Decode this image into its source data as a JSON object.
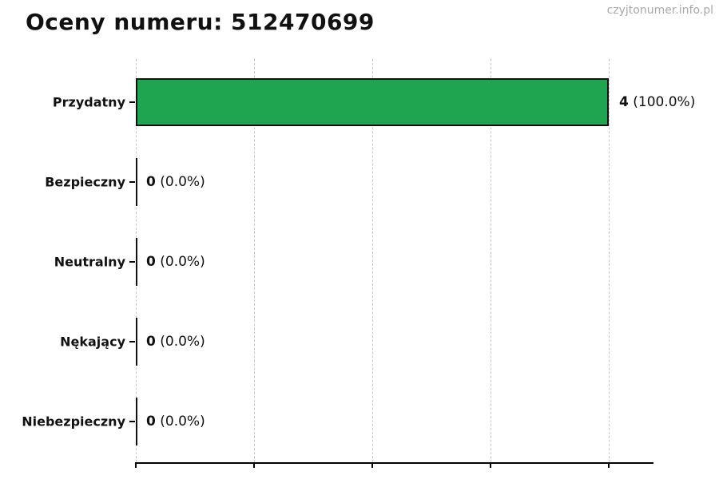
{
  "header": {
    "title": "Oceny numeru: 512470699",
    "watermark": "czyjtonumer.info.pl"
  },
  "chart_data": {
    "type": "bar",
    "orientation": "horizontal",
    "title": "Oceny numeru: 512470699",
    "categories": [
      "Przydatny",
      "Bezpieczny",
      "Neutralny",
      "Nękający",
      "Niebezpieczny"
    ],
    "values": [
      4,
      0,
      0,
      0,
      0
    ],
    "percent_labels": [
      "(100.0%)",
      "(0.0%)",
      "(0.0%)",
      "(0.0%)",
      "(0.0%)"
    ],
    "value_label_texts": [
      "4 (100.0%)",
      "0 (0.0%)",
      "0 (0.0%)",
      "0 (0.0%)",
      "0 (0.0%)"
    ],
    "xlim": [
      0,
      4.38
    ],
    "xticks": [
      0,
      1,
      2,
      3,
      4
    ],
    "xtick_labels_visible": false,
    "ylabel": "",
    "xlabel": "",
    "grid": "vertical-dashed",
    "legend": "none",
    "colors": {
      "bar_fill": "#1fa44f",
      "bar_edge": "#111111",
      "grid_line": "#c9c9c9",
      "axis": "#000000",
      "text": "#111111",
      "watermark": "#a9a9a9"
    }
  }
}
